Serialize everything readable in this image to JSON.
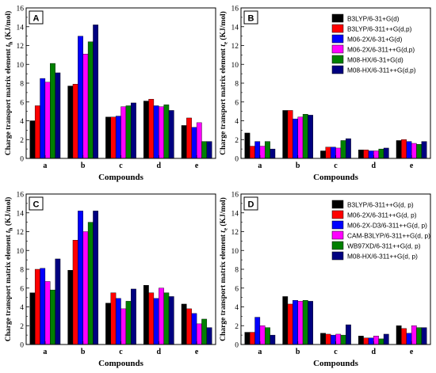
{
  "figure": {
    "type": "multi-panel grouped bar chart"
  },
  "chart_data": [
    {
      "panel": "A",
      "type": "bar",
      "xlabel": "Compounds",
      "ylabel": "Charge transport matrix element",
      "ylabel_symbol": "t",
      "ylabel_subscript": "h",
      "ylabel_unit": "(KJ/mol)",
      "ylim": [
        0,
        16
      ],
      "yticks": [
        0,
        2,
        4,
        6,
        8,
        10,
        12,
        14,
        16
      ],
      "categories": [
        "a",
        "b",
        "c",
        "d",
        "e"
      ],
      "legend_position": "top-right",
      "legend_visible": false,
      "series": [
        {
          "name": "B3LYP/6-31+G(d)",
          "color": "#000000",
          "values": [
            4.0,
            7.7,
            4.4,
            6.1,
            3.5
          ]
        },
        {
          "name": "B3LYP/6-311++G(d,p)",
          "color": "#ff0000",
          "values": [
            5.6,
            7.9,
            4.4,
            6.3,
            4.3
          ]
        },
        {
          "name": "M06-2X/6-31+G(d)",
          "color": "#0000ff",
          "values": [
            8.5,
            13.0,
            4.5,
            5.6,
            3.3
          ]
        },
        {
          "name": "M06-2X/6-311++G(d,p)",
          "color": "#ff00ff",
          "values": [
            8.1,
            11.1,
            5.5,
            5.5,
            3.8
          ]
        },
        {
          "name": "M08-HX/6-31+G(d)",
          "color": "#008000",
          "values": [
            10.1,
            12.4,
            5.6,
            5.7,
            1.8
          ]
        },
        {
          "name": "M08-HX/6-311++G(d,p)",
          "color": "#000080",
          "values": [
            9.1,
            14.2,
            5.9,
            5.1,
            1.8
          ]
        }
      ]
    },
    {
      "panel": "B",
      "type": "bar",
      "xlabel": "Compounds",
      "ylabel": "Charge transport matrix element",
      "ylabel_symbol": "t",
      "ylabel_subscript": "e",
      "ylabel_unit": "(KJ/mol)",
      "ylim": [
        0,
        16
      ],
      "yticks": [
        0,
        2,
        4,
        6,
        8,
        10,
        12,
        14,
        16
      ],
      "categories": [
        "a",
        "b",
        "c",
        "d",
        "e"
      ],
      "legend_position": "top-right",
      "legend_visible": true,
      "series": [
        {
          "name": "B3LYP/6-31+G(d)",
          "color": "#000000",
          "values": [
            2.7,
            5.1,
            0.8,
            0.9,
            1.9
          ]
        },
        {
          "name": "B3LYP/6-311++G(d,p)",
          "color": "#ff0000",
          "values": [
            1.3,
            5.1,
            1.2,
            0.9,
            2.0
          ]
        },
        {
          "name": "M06-2X/6-31+G(d)",
          "color": "#0000ff",
          "values": [
            1.8,
            4.2,
            1.2,
            0.8,
            1.8
          ]
        },
        {
          "name": "M06-2X/6-311++G(d,p)",
          "color": "#ff00ff",
          "values": [
            1.3,
            4.4,
            1.1,
            0.8,
            1.6
          ]
        },
        {
          "name": "M08-HX/6-31+G(d)",
          "color": "#008000",
          "values": [
            1.8,
            4.7,
            1.9,
            1.0,
            1.5
          ]
        },
        {
          "name": "M08-HX/6-311++G(d,p)",
          "color": "#000080",
          "values": [
            1.0,
            4.6,
            2.1,
            1.1,
            1.8
          ]
        }
      ]
    },
    {
      "panel": "C",
      "type": "bar",
      "xlabel": "Compounds",
      "ylabel": "Charge transport matrix element",
      "ylabel_symbol": "t",
      "ylabel_subscript": "h",
      "ylabel_unit": "(KJ/mol)",
      "ylim": [
        0,
        16
      ],
      "yticks": [
        0,
        2,
        4,
        6,
        8,
        10,
        12,
        14,
        16
      ],
      "categories": [
        "a",
        "b",
        "c",
        "d",
        "e"
      ],
      "legend_position": "top-right",
      "legend_visible": false,
      "series": [
        {
          "name": "B3LYP/6-311++G(d, p)",
          "color": "#000000",
          "values": [
            5.5,
            7.9,
            4.4,
            6.3,
            4.3
          ]
        },
        {
          "name": "M06-2X/6-311++G(d, p)",
          "color": "#ff0000",
          "values": [
            8.0,
            11.1,
            5.5,
            5.5,
            3.8
          ]
        },
        {
          "name": "M06-2X-D3/6-311++G(d, p)",
          "color": "#0000ff",
          "values": [
            8.1,
            14.2,
            4.9,
            4.9,
            3.3
          ]
        },
        {
          "name": "CAM-B3LYP/6-311++G(d, p)",
          "color": "#ff00ff",
          "values": [
            6.7,
            12.0,
            3.8,
            6.0,
            2.2
          ]
        },
        {
          "name": "WB97XD/6-311++G(d, p)",
          "color": "#008000",
          "values": [
            5.8,
            13.0,
            4.6,
            5.5,
            2.7
          ]
        },
        {
          "name": "M08-HX/6-311++G(d, p)",
          "color": "#000080",
          "values": [
            9.1,
            14.2,
            5.9,
            5.1,
            1.8
          ]
        }
      ]
    },
    {
      "panel": "D",
      "type": "bar",
      "xlabel": "Compounds",
      "ylabel": "Charge transport matrix element",
      "ylabel_symbol": "t",
      "ylabel_subscript": "e",
      "ylabel_unit": "(KJ/mol)",
      "ylim": [
        0,
        16
      ],
      "yticks": [
        0,
        2,
        4,
        6,
        8,
        10,
        12,
        14,
        16
      ],
      "categories": [
        "a",
        "b",
        "c",
        "d",
        "e"
      ],
      "legend_position": "top-right",
      "legend_visible": true,
      "series": [
        {
          "name": "B3LYP/6-311++G(d, p)",
          "color": "#000000",
          "values": [
            1.3,
            5.1,
            1.2,
            0.9,
            2.0
          ]
        },
        {
          "name": "M06-2X/6-311++G(d, p)",
          "color": "#ff0000",
          "values": [
            1.3,
            4.3,
            1.1,
            0.7,
            1.7
          ]
        },
        {
          "name": "M06-2X-D3/6-311++G(d, p)",
          "color": "#0000ff",
          "values": [
            2.9,
            4.7,
            1.0,
            0.7,
            1.2
          ]
        },
        {
          "name": "CAM-B3LYP/6-311++G(d, p)",
          "color": "#ff00ff",
          "values": [
            2.0,
            4.6,
            1.1,
            0.9,
            2.0
          ]
        },
        {
          "name": "WB97XD/6-311++G(d, p)",
          "color": "#008000",
          "values": [
            1.8,
            4.7,
            1.0,
            0.6,
            1.8
          ]
        },
        {
          "name": "M08-HX/6-311++G(d, p)",
          "color": "#000080",
          "values": [
            1.0,
            4.6,
            2.1,
            1.1,
            1.8
          ]
        }
      ]
    }
  ]
}
